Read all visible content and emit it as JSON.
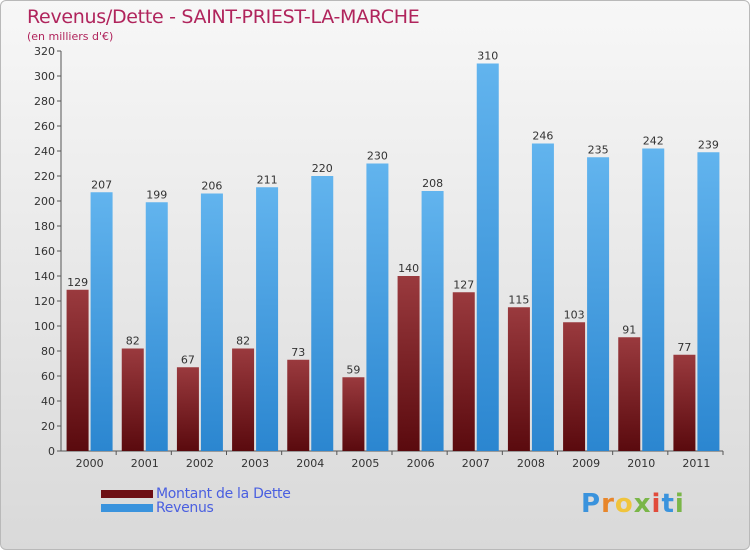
{
  "header": {
    "title": "Revenus/Dette - SAINT-PRIEST-LA-MARCHE",
    "subtitle": "(en milliers d'€)"
  },
  "legend": {
    "items": [
      {
        "label": "Montant de la Dette",
        "color": "#6e0f14"
      },
      {
        "label": "Revenus",
        "color": "#3a93dd"
      }
    ]
  },
  "logo": {
    "text": "Proxiti"
  },
  "colors": {
    "debt_top": "#9a3a3e",
    "debt_bottom": "#5a0a0e",
    "rev_top": "#62b4ee",
    "rev_bottom": "#2b86d0",
    "title": "#b0245c",
    "legend_text": "#4a5fe0"
  },
  "chart_data": {
    "type": "bar",
    "categories": [
      "2000",
      "2001",
      "2002",
      "2003",
      "2004",
      "2005",
      "2006",
      "2007",
      "2008",
      "2009",
      "2010",
      "2011"
    ],
    "series": [
      {
        "name": "Montant de la Dette",
        "values": [
          129,
          82,
          67,
          82,
          73,
          59,
          140,
          127,
          115,
          103,
          91,
          77
        ]
      },
      {
        "name": "Revenus",
        "values": [
          207,
          199,
          206,
          211,
          220,
          230,
          208,
          310,
          246,
          235,
          242,
          239
        ]
      }
    ],
    "y_ticks": [
      "0",
      "20",
      "40",
      "60",
      "80",
      "100",
      "120",
      "140",
      "160",
      "180",
      "200",
      "220",
      "240",
      "260",
      "280",
      "300",
      "320"
    ],
    "ylim": [
      0,
      320
    ],
    "grid": false,
    "legend_position": "bottom-left"
  }
}
